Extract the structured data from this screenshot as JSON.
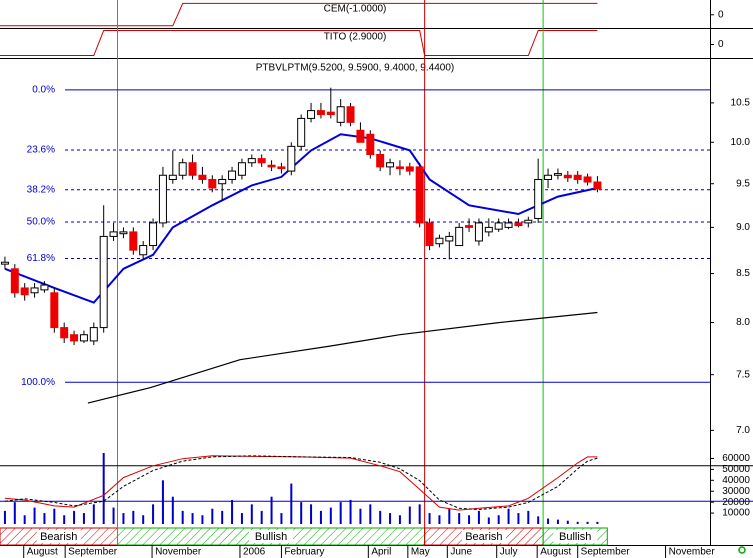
{
  "chart_data": [
    {
      "type": "step-line",
      "title": "CEM(-1.0000)",
      "color": "#cc0000",
      "x": [
        -0.5,
        17,
        18,
        60
      ],
      "values": [
        0,
        0,
        1,
        1
      ],
      "ylim": [
        -0.1,
        1.15
      ],
      "yticks": [
        0
      ]
    },
    {
      "type": "step-line",
      "title": "TITO (2.9000)",
      "color": "#cc0000",
      "x": [
        -0.5,
        9,
        10,
        42,
        42.5,
        53,
        54,
        60
      ],
      "values": [
        0,
        0,
        1,
        1,
        0,
        0,
        1,
        1
      ],
      "ylim": [
        -0.1,
        1.1
      ],
      "yticks": [
        0
      ]
    },
    {
      "type": "candlestick",
      "title": "PTBVLPTM(9.5200, 9.5900, 9.4000, 9.4400)",
      "log_scale": true,
      "up_color": "#ffffff",
      "down_color": "#ee0000",
      "open": [
        8.6,
        8.55,
        8.35,
        8.3,
        8.33,
        8.3,
        7.95,
        7.88,
        7.82,
        7.82,
        7.95,
        8.9,
        8.93,
        8.95,
        8.7,
        8.8,
        9.05,
        9.55,
        9.6,
        9.75,
        9.6,
        9.55,
        9.5,
        9.55,
        9.6,
        9.75,
        9.8,
        9.72,
        9.7,
        9.65,
        9.95,
        10.3,
        10.4,
        10.38,
        10.25,
        10.45,
        10.15,
        10.1,
        9.85,
        9.7,
        9.7,
        9.7,
        9.7,
        9.05,
        8.82,
        8.85,
        8.8,
        9.02,
        8.85,
        8.95,
        8.98,
        9.0,
        9.05,
        9.05,
        9.1,
        9.55,
        9.6,
        9.6,
        9.6,
        9.58,
        9.52
      ],
      "high": [
        8.68,
        8.6,
        8.4,
        8.4,
        8.42,
        8.35,
        8.0,
        7.92,
        7.92,
        8.0,
        9.25,
        9.05,
        9.0,
        9.0,
        8.85,
        9.1,
        9.7,
        9.9,
        9.8,
        9.85,
        9.7,
        9.6,
        9.6,
        9.7,
        9.8,
        9.85,
        9.85,
        9.78,
        9.75,
        10.0,
        10.35,
        10.5,
        10.5,
        10.7,
        10.55,
        10.5,
        10.25,
        10.15,
        9.9,
        9.8,
        9.78,
        9.75,
        9.75,
        9.1,
        8.92,
        8.95,
        9.05,
        9.1,
        9.1,
        9.1,
        9.1,
        9.1,
        9.1,
        9.12,
        9.8,
        9.68,
        9.68,
        9.65,
        9.65,
        9.62,
        9.59
      ],
      "low": [
        8.55,
        8.25,
        8.22,
        8.25,
        8.3,
        7.9,
        7.8,
        7.78,
        7.8,
        7.78,
        7.9,
        8.85,
        8.88,
        8.7,
        8.65,
        8.75,
        9.0,
        9.5,
        9.55,
        9.55,
        9.5,
        9.4,
        9.3,
        9.5,
        9.55,
        9.7,
        9.7,
        9.65,
        9.62,
        9.6,
        9.9,
        10.25,
        10.3,
        10.3,
        10.2,
        10.2,
        10.0,
        9.8,
        9.65,
        9.6,
        9.6,
        9.6,
        9.0,
        8.75,
        8.78,
        8.65,
        8.8,
        8.95,
        8.8,
        8.9,
        8.95,
        8.98,
        9.0,
        9.0,
        9.05,
        9.45,
        9.55,
        9.52,
        9.5,
        9.48,
        9.4
      ],
      "close": [
        8.62,
        8.3,
        8.28,
        8.35,
        8.38,
        7.95,
        7.85,
        7.82,
        7.88,
        7.95,
        8.9,
        8.95,
        8.95,
        8.75,
        8.8,
        9.05,
        9.6,
        9.6,
        9.75,
        9.6,
        9.55,
        9.45,
        9.55,
        9.65,
        9.75,
        9.8,
        9.75,
        9.7,
        9.68,
        9.95,
        10.3,
        10.4,
        10.35,
        10.35,
        10.45,
        10.25,
        10.0,
        9.85,
        9.7,
        9.75,
        9.68,
        9.65,
        9.05,
        8.8,
        8.88,
        8.9,
        9.0,
        9.0,
        9.05,
        9.0,
        9.05,
        9.05,
        9.02,
        9.08,
        9.55,
        9.6,
        9.62,
        9.57,
        9.55,
        9.52,
        9.44
      ],
      "overlays": [
        {
          "color": "#0000dd",
          "x": [
            0,
            5,
            9,
            12,
            15,
            17,
            21,
            25,
            28,
            31,
            34,
            37,
            41,
            43,
            47,
            52,
            56,
            60
          ],
          "values": [
            8.55,
            8.35,
            8.2,
            8.55,
            8.7,
            9.0,
            9.25,
            9.48,
            9.58,
            9.9,
            10.1,
            10.05,
            9.9,
            9.55,
            9.25,
            9.15,
            9.35,
            9.45
          ]
        },
        {
          "color": "#000000",
          "x": [
            8.4,
            14.7,
            23.8,
            32.9,
            40,
            50.1,
            60
          ],
          "values": [
            7.24,
            7.38,
            7.64,
            7.77,
            7.88,
            8.0,
            8.1
          ]
        }
      ],
      "levels": [
        {
          "label": "0.0%",
          "value": 10.67,
          "style": "solid"
        },
        {
          "label": "23.6%",
          "value": 9.905,
          "style": "dashed"
        },
        {
          "label": "38.2%",
          "value": 9.43,
          "style": "dashed"
        },
        {
          "label": "50.0%",
          "value": 9.06,
          "style": "dashed"
        },
        {
          "label": "61.8%",
          "value": 8.66,
          "style": "dashed"
        },
        {
          "label": "100.0%",
          "value": 7.43,
          "style": "solid"
        }
      ],
      "xlim": [
        -0.5,
        71.4
      ],
      "xticks": [
        {
          "value": 1.9,
          "label": "August"
        },
        {
          "value": 6.1,
          "label": "September"
        },
        {
          "value": 14.9,
          "label": "November"
        },
        {
          "value": 23.8,
          "label": "2006"
        },
        {
          "value": 28,
          "label": "February"
        },
        {
          "value": 36.8,
          "label": "April"
        },
        {
          "value": 40.8,
          "label": "May"
        },
        {
          "value": 44.8,
          "label": "June"
        },
        {
          "value": 49.8,
          "label": "July"
        },
        {
          "value": 53.9,
          "label": "August"
        },
        {
          "value": 58,
          "label": "September"
        },
        {
          "value": 66.9,
          "label": "November"
        }
      ],
      "ylim": [
        6.9,
        11.1
      ],
      "yticks": [
        {
          "value": 7,
          "label": "7.0"
        },
        7.5,
        {
          "value": 8,
          "label": "8.0"
        },
        8.5,
        {
          "value": 9,
          "label": "9.0"
        },
        9.5,
        {
          "value": 10,
          "label": "10.0"
        },
        10.5
      ],
      "signals": [
        {
          "label": "Bearish",
          "start": -0.5,
          "end": 11.4,
          "color": "#cc0000"
        },
        {
          "label": "Bullish",
          "start": 11.4,
          "end": 42.5,
          "color": "#00aa00"
        },
        {
          "label": "Bearish",
          "start": 42.5,
          "end": 54.5,
          "color": "#cc0000"
        },
        {
          "label": "Bullish",
          "start": 54.5,
          "end": 61,
          "color": "#00aa00"
        }
      ]
    },
    {
      "type": "volume",
      "color": "#0000cc",
      "values": [
        12000,
        20000,
        8000,
        15000,
        10000,
        14000,
        8000,
        12000,
        10000,
        18000,
        65000,
        15000,
        10000,
        12000,
        8000,
        18000,
        40000,
        25000,
        12000,
        10000,
        8000,
        14000,
        12000,
        22000,
        10000,
        18000,
        12000,
        25000,
        10000,
        37000,
        20000,
        18000,
        12000,
        15000,
        20000,
        22000,
        14000,
        18000,
        12000,
        10000,
        8000,
        16000,
        18000,
        10000,
        8000,
        14000,
        10000,
        8000,
        12000,
        6000,
        8000,
        14000,
        10000,
        12000,
        7000,
        5000,
        4000,
        3000,
        2000,
        2000,
        2000
      ],
      "ylim": [
        0,
        65000
      ],
      "yticks": [
        10000,
        20000,
        30000,
        40000,
        50000,
        60000
      ],
      "y2lim": [
        0,
        100
      ],
      "reference_lines": [
        20,
        80
      ],
      "series": [
        {
          "color": "#dd0000",
          "style": "solid",
          "axis": "y2",
          "x": [
            0,
            2,
            5,
            7,
            10,
            12,
            15,
            18,
            21,
            25,
            30,
            35,
            38,
            40,
            42,
            44,
            46,
            48,
            51,
            53,
            56,
            58,
            59,
            60
          ],
          "values": [
            25,
            22,
            12,
            10,
            30,
            60,
            80,
            92,
            97,
            96,
            95,
            93,
            80,
            70,
            40,
            10,
            5,
            8,
            12,
            25,
            60,
            85,
            95,
            95
          ]
        },
        {
          "color": "#000000",
          "style": "dashed",
          "axis": "y2",
          "x": [
            0,
            2,
            5,
            7,
            10,
            12,
            15,
            18,
            21,
            25,
            30,
            35,
            38,
            40,
            42,
            44,
            46,
            48,
            51,
            53,
            56,
            58,
            59,
            60
          ],
          "values": [
            20,
            24,
            18,
            12,
            20,
            45,
            72,
            88,
            95,
            97,
            95,
            94,
            86,
            75,
            55,
            22,
            8,
            6,
            10,
            18,
            45,
            75,
            88,
            93
          ]
        }
      ]
    }
  ]
}
